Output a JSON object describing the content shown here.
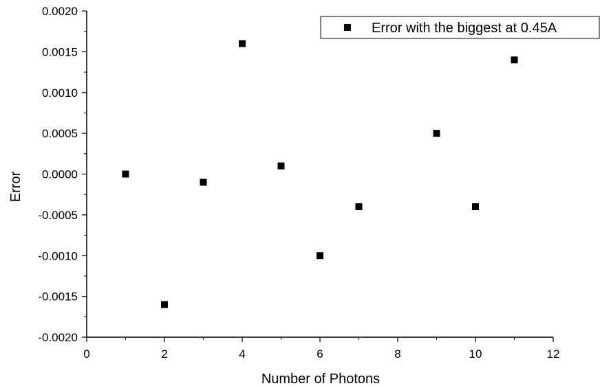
{
  "chart_data": {
    "type": "scatter",
    "xlabel": "Number of Photons",
    "ylabel": "Error",
    "xlim": [
      0,
      12
    ],
    "ylim": [
      -0.002,
      0.002
    ],
    "xticks": [
      0,
      2,
      4,
      6,
      8,
      10,
      12
    ],
    "xtick_labels": [
      "0",
      "2",
      "4",
      "6",
      "8",
      "10",
      "12"
    ],
    "yticks": [
      0.002,
      0.0015,
      0.001,
      0.0005,
      0,
      -0.0005,
      -0.001,
      -0.0015,
      -0.002
    ],
    "ytick_labels": [
      "0.0020",
      "0.0015",
      "0.0010",
      "0.0005",
      "0.0000",
      "-0.0005",
      "-0.0010",
      "-0.0015",
      "-0.0020"
    ],
    "grid": false,
    "legend_position": "top-right",
    "series": [
      {
        "name": "Error with the biggest at 0.45A",
        "marker": "square",
        "color": "#000000",
        "x": [
          1,
          2,
          3,
          4,
          5,
          6,
          7,
          9,
          10,
          11
        ],
        "y": [
          0.0,
          -0.0016,
          -0.0001,
          0.0016,
          0.0001,
          -0.001,
          -0.0004,
          0.0005,
          -0.0004,
          0.0014
        ]
      }
    ]
  }
}
